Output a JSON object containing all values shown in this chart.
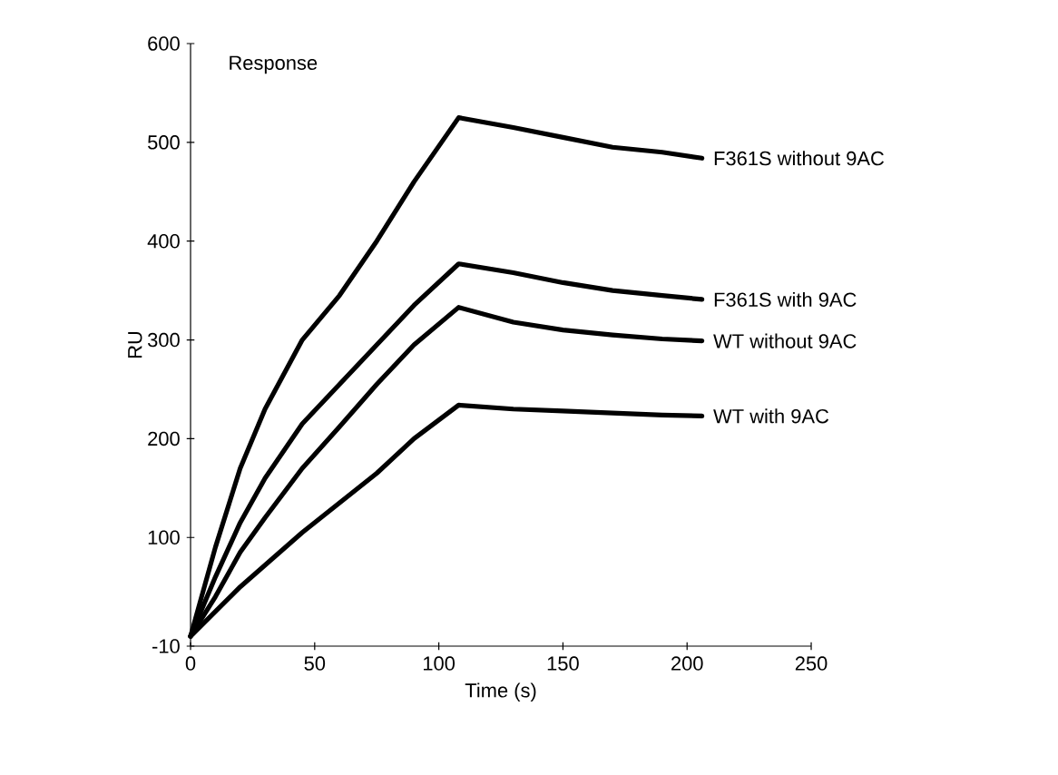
{
  "chart_data": {
    "type": "line",
    "xlabel": "Time (s)",
    "ylabel": "RU",
    "annotations": [
      "Response"
    ],
    "xlim": [
      0,
      250
    ],
    "xticks": [
      0,
      50,
      100,
      150,
      200,
      250
    ],
    "ylim": [
      -10,
      600
    ],
    "yticks": [
      -10,
      100,
      200,
      300,
      400,
      500,
      600
    ],
    "x": [
      0,
      10,
      20,
      30,
      45,
      60,
      75,
      90,
      108,
      130,
      150,
      170,
      190,
      206
    ],
    "series": [
      {
        "name": "F361S without 9AC",
        "color": "#000000",
        "values": [
          0,
          90,
          170,
          230,
          300,
          345,
          400,
          460,
          525,
          515,
          505,
          495,
          490,
          484
        ]
      },
      {
        "name": "F361S with 9AC",
        "color": "#000000",
        "values": [
          0,
          60,
          115,
          160,
          215,
          255,
          295,
          335,
          377,
          368,
          358,
          350,
          345,
          341
        ]
      },
      {
        "name": "WT without 9AC",
        "color": "#000000",
        "values": [
          0,
          40,
          85,
          120,
          170,
          212,
          255,
          295,
          333,
          318,
          310,
          305,
          301,
          299
        ]
      },
      {
        "name": "WT with 9AC",
        "color": "#000000",
        "values": [
          0,
          25,
          50,
          72,
          105,
          135,
          165,
          200,
          234,
          230,
          228,
          226,
          224,
          223
        ]
      }
    ],
    "grid": false,
    "legend": false,
    "marker": "none",
    "line_style": "solid"
  }
}
